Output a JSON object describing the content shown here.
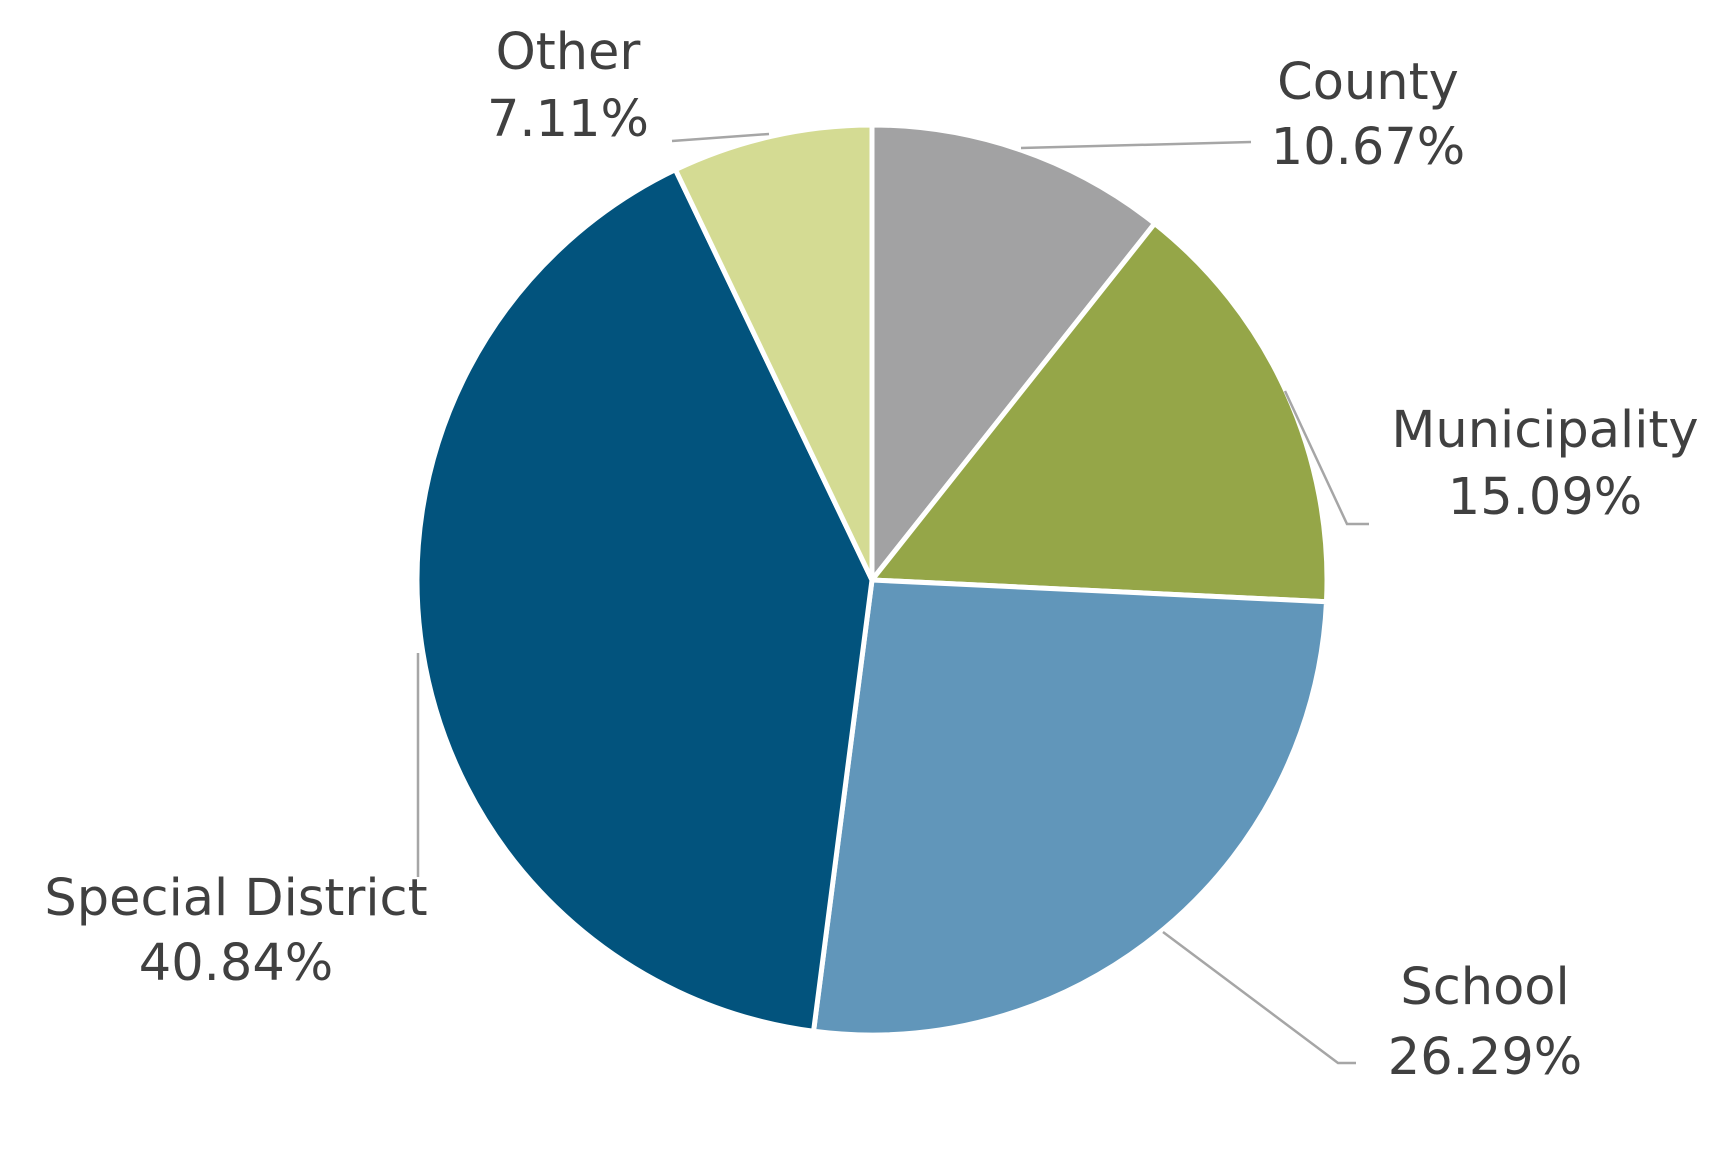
{
  "chart_data": {
    "type": "pie",
    "categories": [
      "County",
      "Municipality",
      "School",
      "Special District",
      "Other"
    ],
    "values": [
      10.67,
      15.09,
      26.29,
      40.84,
      7.11
    ],
    "value_labels": [
      "10.67%",
      "15.09%",
      "26.29%",
      "40.84%",
      "7.11%"
    ],
    "colors": [
      "#a2a2a3",
      "#95a648",
      "#6196ba",
      "#02537d",
      "#d4db93"
    ]
  }
}
